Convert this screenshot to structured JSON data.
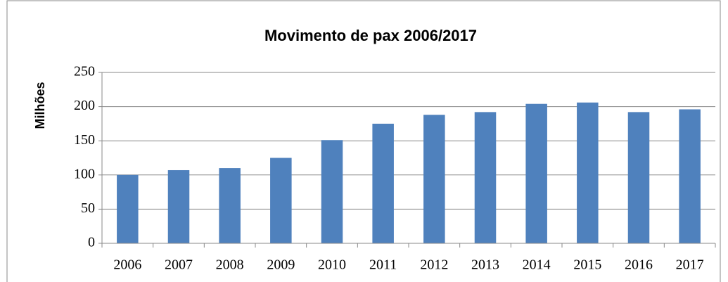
{
  "chart_data": {
    "type": "bar",
    "title": "Movimento de pax 2006/2017",
    "y_label": "Milhões",
    "categories": [
      "2006",
      "2007",
      "2008",
      "2009",
      "2010",
      "2011",
      "2012",
      "2013",
      "2014",
      "2015",
      "2016",
      "2017"
    ],
    "values": [
      100,
      107,
      110,
      125,
      151,
      175,
      188,
      192,
      204,
      206,
      192,
      196
    ],
    "color": "#4f81bd",
    "ylim": [
      0,
      250
    ],
    "yticks": [
      0,
      50,
      100,
      150,
      200,
      250
    ],
    "grid": true
  }
}
